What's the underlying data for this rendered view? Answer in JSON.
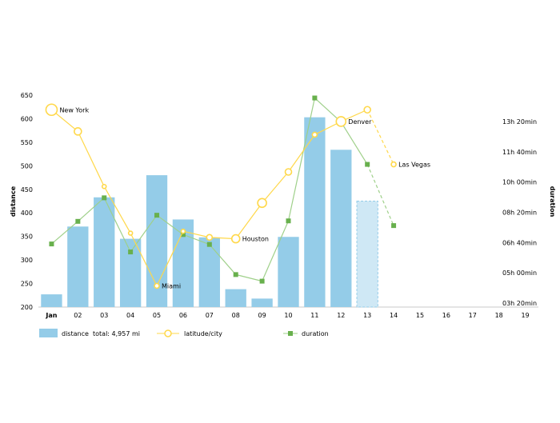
{
  "chart_data": {
    "type": "bar-line-combo",
    "categories": [
      "Jan",
      "02",
      "03",
      "04",
      "05",
      "06",
      "07",
      "08",
      "09",
      "10",
      "11",
      "12",
      "13",
      "14",
      "15",
      "16",
      "17",
      "18",
      "19"
    ],
    "bold_categories": [
      "Jan"
    ],
    "left_axis": {
      "label": "distance",
      "ylim": [
        200,
        650
      ],
      "ticks": [
        200,
        250,
        300,
        350,
        400,
        450,
        500,
        550,
        600,
        650
      ]
    },
    "right_axis": {
      "label": "duration",
      "ticks": [
        "03h 20min",
        "05h 00min",
        "06h 40min",
        "08h 20min",
        "10h 00min",
        "11h 40min",
        "13h 20min"
      ]
    },
    "distance": {
      "name": "distance",
      "values": [
        227,
        371,
        433,
        345,
        480,
        386,
        348,
        238,
        218,
        349,
        603,
        534,
        425
      ],
      "projected_from_index": 12,
      "color": "#94cce8",
      "projected_color": "#cfe8f5"
    },
    "latitude": {
      "name": "latitude/city",
      "values": [
        619,
        573,
        456,
        357,
        245,
        361,
        348,
        345,
        421,
        487,
        566,
        594,
        619,
        503
      ],
      "bubble_size": [
        7,
        4.5,
        2.5,
        2.5,
        3,
        2.5,
        3.5,
        5,
        5.5,
        4,
        3,
        6,
        4,
        3
      ],
      "dashed_from_index": 12,
      "labels": {
        "0": "New York",
        "4": "Miami",
        "7": "Houston",
        "11": "Denver",
        "13": "Las Vegas"
      },
      "color": "#ffd84a"
    },
    "duration": {
      "name": "duration",
      "values": [
        334,
        382,
        432,
        317,
        395,
        354,
        333,
        269,
        255,
        383,
        644,
        593,
        503,
        373
      ],
      "dashed_from_index": 12,
      "color": "#68b04d",
      "line_color": "#9fd08a"
    },
    "legend": {
      "distance_label": "distance",
      "distance_total_label": "total: 4,957 mi",
      "latitude_label": "latitude/city",
      "duration_label": "duration"
    }
  }
}
